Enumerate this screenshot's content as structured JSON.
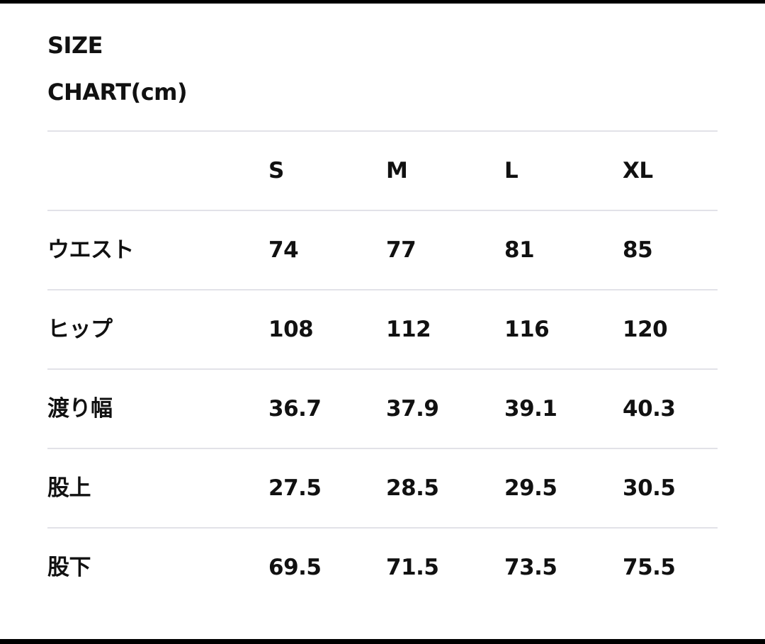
{
  "title": {
    "line1": "SIZE",
    "line2": "CHART(cm)"
  },
  "table": {
    "headers": [
      "",
      "S",
      "M",
      "L",
      "XL"
    ],
    "rows": [
      {
        "label": "ウエスト",
        "values": [
          "74",
          "77",
          "81",
          "85"
        ]
      },
      {
        "label": "ヒップ",
        "values": [
          "108",
          "112",
          "116",
          "120"
        ]
      },
      {
        "label": "渡り幅",
        "values": [
          "36.7",
          "37.9",
          "39.1",
          "40.3"
        ]
      },
      {
        "label": "股上",
        "values": [
          "27.5",
          "28.5",
          "29.5",
          "30.5"
        ]
      },
      {
        "label": "股下",
        "values": [
          "69.5",
          "71.5",
          "73.5",
          "75.5"
        ]
      }
    ]
  }
}
